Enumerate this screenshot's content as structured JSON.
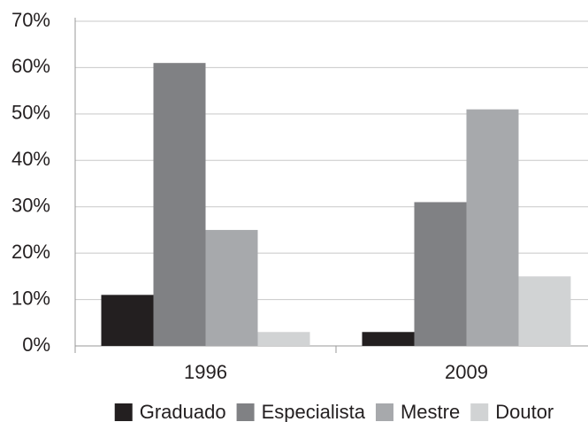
{
  "chart_data": {
    "type": "bar",
    "categories": [
      "1996",
      "2009"
    ],
    "series": [
      {
        "name": "Graduado",
        "color": "#231f20",
        "values": [
          11,
          3
        ]
      },
      {
        "name": "Especialista",
        "color": "#808184",
        "values": [
          61,
          31
        ]
      },
      {
        "name": "Mestre",
        "color": "#a7a9ac",
        "values": [
          25,
          51
        ]
      },
      {
        "name": "Doutor",
        "color": "#d1d3d4",
        "values": [
          3,
          15
        ]
      }
    ],
    "ylim": [
      0,
      70
    ],
    "yticks": [
      {
        "value": 0,
        "label": "0%"
      },
      {
        "value": 10,
        "label": "10%"
      },
      {
        "value": 20,
        "label": "20%"
      },
      {
        "value": 30,
        "label": "30%"
      },
      {
        "value": 40,
        "label": "40%"
      },
      {
        "value": 50,
        "label": "50%"
      },
      {
        "value": 60,
        "label": "60%"
      },
      {
        "value": 70,
        "label": "70%"
      }
    ],
    "grid": true
  }
}
